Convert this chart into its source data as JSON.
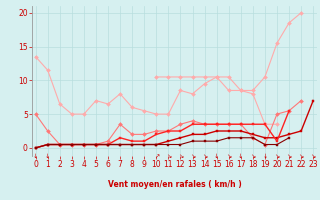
{
  "xlabel": "Vent moyen/en rafales ( km/h )",
  "x": [
    0,
    1,
    2,
    3,
    4,
    5,
    6,
    7,
    8,
    9,
    10,
    11,
    12,
    13,
    14,
    15,
    16,
    17,
    18,
    19,
    20,
    21,
    22,
    23
  ],
  "series": [
    {
      "color": "#FFAAAA",
      "alpha": 1.0,
      "lw": 0.8,
      "marker": "D",
      "ms": 2.0,
      "y": [
        13.5,
        11.5,
        6.5,
        5.0,
        5.0,
        7.0,
        6.5,
        8.0,
        6.0,
        5.5,
        5.0,
        5.0,
        8.5,
        8.0,
        9.5,
        10.5,
        8.5,
        8.5,
        8.0,
        3.5,
        3.5,
        null,
        null,
        null
      ]
    },
    {
      "color": "#FFAAAA",
      "alpha": 1.0,
      "lw": 0.8,
      "marker": "D",
      "ms": 2.0,
      "y": [
        null,
        null,
        null,
        null,
        null,
        null,
        null,
        null,
        null,
        null,
        10.5,
        10.5,
        10.5,
        10.5,
        10.5,
        10.5,
        10.5,
        8.5,
        8.5,
        10.5,
        15.5,
        18.5,
        20.0,
        null
      ]
    },
    {
      "color": "#FF7777",
      "alpha": 1.0,
      "lw": 0.8,
      "marker": "D",
      "ms": 2.0,
      "y": [
        5.0,
        2.5,
        0.5,
        0.5,
        0.5,
        0.5,
        1.0,
        3.5,
        2.0,
        2.0,
        2.5,
        2.5,
        3.5,
        4.0,
        3.5,
        3.5,
        3.5,
        3.5,
        1.5,
        0.5,
        5.0,
        5.5,
        7.0,
        null
      ]
    },
    {
      "color": "#CC0000",
      "alpha": 1.0,
      "lw": 1.0,
      "marker": "s",
      "ms": 2.0,
      "y": [
        0.0,
        0.5,
        0.5,
        0.5,
        0.5,
        0.5,
        0.5,
        0.5,
        0.5,
        0.5,
        0.5,
        1.0,
        1.5,
        2.0,
        2.0,
        2.5,
        2.5,
        2.5,
        2.0,
        1.5,
        1.5,
        2.0,
        2.5,
        7.0
      ]
    },
    {
      "color": "#FF2222",
      "alpha": 1.0,
      "lw": 1.0,
      "marker": "s",
      "ms": 2.0,
      "y": [
        0.0,
        0.5,
        0.5,
        0.5,
        0.5,
        0.5,
        0.5,
        1.5,
        1.0,
        1.0,
        2.0,
        2.5,
        2.5,
        3.5,
        3.5,
        3.5,
        3.5,
        3.5,
        3.5,
        3.5,
        1.0,
        5.5,
        null,
        null
      ]
    },
    {
      "color": "#880000",
      "alpha": 1.0,
      "lw": 0.8,
      "marker": "s",
      "ms": 2.0,
      "y": [
        0.0,
        0.5,
        0.5,
        0.5,
        0.5,
        0.5,
        0.5,
        0.5,
        0.5,
        0.5,
        0.5,
        0.5,
        0.5,
        1.0,
        1.0,
        1.0,
        1.5,
        1.5,
        1.5,
        0.5,
        0.5,
        1.5,
        null,
        null
      ]
    }
  ],
  "ylim": [
    -1.2,
    21
  ],
  "xlim": [
    -0.3,
    23.3
  ],
  "yticks": [
    0,
    5,
    10,
    15,
    20
  ],
  "xticks": [
    0,
    1,
    2,
    3,
    4,
    5,
    6,
    7,
    8,
    9,
    10,
    11,
    12,
    13,
    14,
    15,
    16,
    17,
    18,
    19,
    20,
    21,
    22,
    23
  ],
  "bg_color": "#D6F0F0",
  "grid_color": "#B8DEDE",
  "tick_color": "#CC0000",
  "label_color": "#CC0000",
  "wind_arrows": [
    {
      "x": 0,
      "sym": "↓"
    },
    {
      "x": 1,
      "sym": "↓"
    },
    {
      "x": 10,
      "sym": "↗"
    },
    {
      "x": 11,
      "sym": "↘"
    },
    {
      "x": 12,
      "sym": "↘"
    },
    {
      "x": 13,
      "sym": "↘"
    },
    {
      "x": 14,
      "sym": "↘"
    },
    {
      "x": 15,
      "sym": "↓"
    },
    {
      "x": 16,
      "sym": "↘"
    },
    {
      "x": 17,
      "sym": "↓"
    },
    {
      "x": 18,
      "sym": "↘"
    },
    {
      "x": 19,
      "sym": "↓"
    },
    {
      "x": 20,
      "sym": "↘"
    },
    {
      "x": 21,
      "sym": "↘"
    },
    {
      "x": 22,
      "sym": "↘"
    },
    {
      "x": 23,
      "sym": "↘"
    }
  ]
}
